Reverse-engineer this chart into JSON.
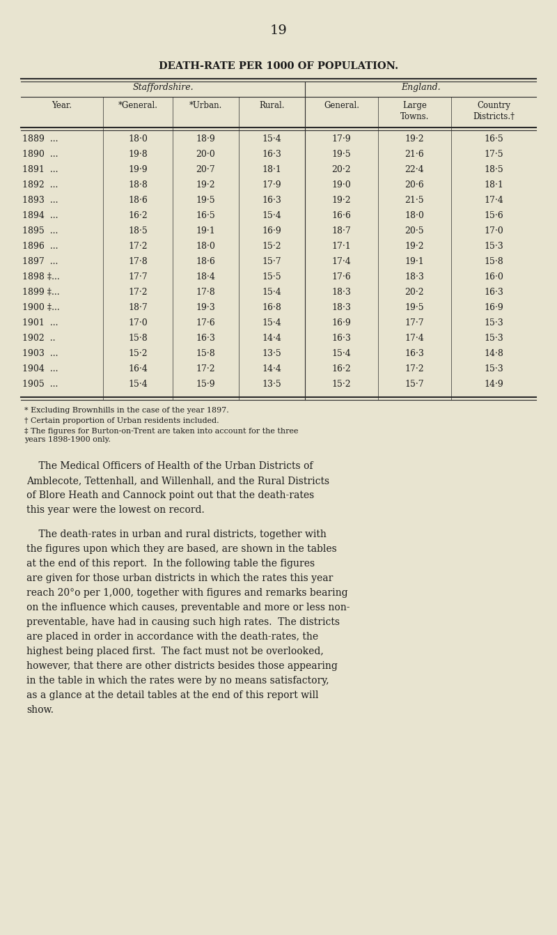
{
  "page_number": "19",
  "title": "DEATH-RATE PER 1000 OF POPULATION.",
  "group1_header": "Staffordshire.",
  "group2_header": "England.",
  "col_headers": [
    "Year.",
    "*General.",
    "*Urban.",
    "Rural.",
    "General.",
    "Large\nTowns.",
    "Country\nDistricts.†"
  ],
  "years": [
    "1889  ...",
    "1890  ...",
    "1891  ...",
    "1892  ...",
    "1893  ...",
    "1894  ...",
    "1895  ...",
    "1896  ...",
    "1897  ...",
    "1898 ‡...",
    "1899 ‡...",
    "1900 ‡...",
    "1901  ...",
    "1902  ..",
    "1903  ...",
    "1904  ...",
    "1905  ..."
  ],
  "data": [
    [
      18.0,
      18.9,
      15.4,
      17.9,
      19.2,
      16.5
    ],
    [
      19.8,
      20.0,
      16.3,
      19.5,
      21.6,
      17.5
    ],
    [
      19.9,
      20.7,
      18.1,
      20.2,
      22.4,
      18.5
    ],
    [
      18.8,
      19.2,
      17.9,
      19.0,
      20.6,
      18.1
    ],
    [
      18.6,
      19.5,
      16.3,
      19.2,
      21.5,
      17.4
    ],
    [
      16.2,
      16.5,
      15.4,
      16.6,
      18.0,
      15.6
    ],
    [
      18.5,
      19.1,
      16.9,
      18.7,
      20.5,
      17.0
    ],
    [
      17.2,
      18.0,
      15.2,
      17.1,
      19.2,
      15.3
    ],
    [
      17.8,
      18.6,
      15.7,
      17.4,
      19.1,
      15.8
    ],
    [
      17.7,
      18.4,
      15.5,
      17.6,
      18.3,
      16.0
    ],
    [
      17.2,
      17.8,
      15.4,
      18.3,
      20.2,
      16.3
    ],
    [
      18.7,
      19.3,
      16.8,
      18.3,
      19.5,
      16.9
    ],
    [
      17.0,
      17.6,
      15.4,
      16.9,
      17.7,
      15.3
    ],
    [
      15.8,
      16.3,
      14.4,
      16.3,
      17.4,
      15.3
    ],
    [
      15.2,
      15.8,
      13.5,
      15.4,
      16.3,
      14.8
    ],
    [
      16.4,
      17.2,
      14.4,
      16.2,
      17.2,
      15.3
    ],
    [
      15.4,
      15.9,
      13.5,
      15.2,
      15.7,
      14.9
    ]
  ],
  "footnotes": [
    "* Excluding Brownhills in the case of the year 1897.",
    "† Certain proportion of Urban residents included.",
    "‡ The figures for Burton-on-Trent are taken into account for the three\nyears 1898-1900 only."
  ],
  "body_text_1": "    The Medical Officers of Health of the Urban Districts of\nAmblecote, Tettenhall, and Willenhall, and the Rural Districts\nof Blore Heath and Cannock point out that the death-rates\nthis year were the lowest on record.",
  "body_text_2": "    The death-rates in urban and rural districts, together with\nthe figures upon which they are based, are shown in the tables\nat the end of this report.  In the following table the figures\nare given for those urban districts in which the rates this year\nreach 20°o per 1,000, together with figures and remarks bearing\non the influence which causes, preventable and more or less non-\npreventable, have had in causing such high rates.  The districts\nare placed in order in accordance with the death-rates, the\nhighest being placed first.  The fact must not be overlooked,\nhowever, that there are other districts besides those appearing\nin the table in which the rates were by no means satisfactory,\nas a glance at the detail tables at the end of this report will\nshow.",
  "bg_color": "#e8e4d0",
  "text_color": "#1a1a1a",
  "line_color": "#2a2a2a"
}
